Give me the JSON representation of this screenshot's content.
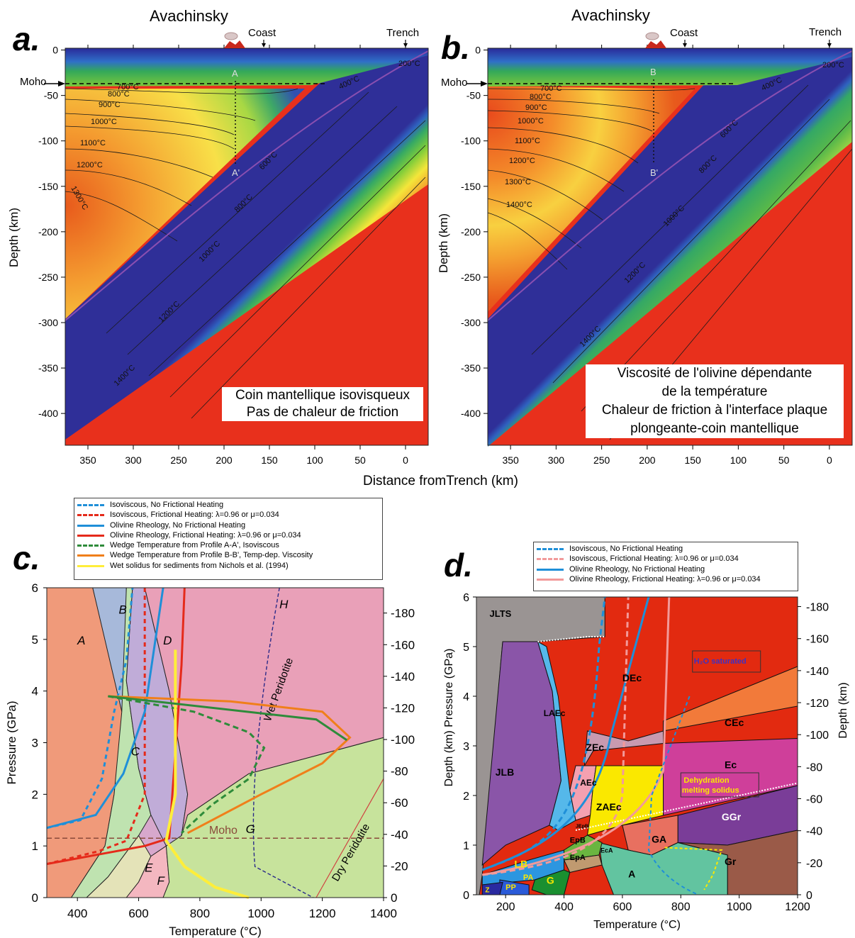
{
  "panels": {
    "a": {
      "letter": "a.",
      "title": "Avachinsky",
      "coast": "Coast",
      "trench": "Trench",
      "moho": "Moho",
      "ylabel": "Depth (km)",
      "box_lines": [
        "Coin mantellique isovisqueux",
        "Pas de chaleur de friction"
      ],
      "profile_top": "A",
      "profile_bottom": "A'"
    },
    "b": {
      "letter": "b.",
      "title": "Avachinsky",
      "coast": "Coast",
      "trench": "Trench",
      "moho": "Moho",
      "ylabel": "Depth (km)",
      "box_lines": [
        "Viscosité de l'olivine dépendante",
        "de la température",
        "Chaleur de friction à l'interface plaque",
        "plongeante-coin mantellique"
      ],
      "profile_top": "B",
      "profile_bottom": "B'"
    },
    "c": {
      "letter": "c."
    },
    "d": {
      "letter": "d."
    }
  },
  "shared_xlabel": "Distance fromTrench (km)",
  "chart_data": [
    {
      "type": "heatmap",
      "title": "Avachinsky",
      "xlabel": "Distance fromTrench (km)",
      "ylabel": "Depth (km)",
      "xticks": [
        350,
        300,
        250,
        200,
        150,
        100,
        50,
        0
      ],
      "yticks": [
        0,
        -50,
        -100,
        -150,
        -200,
        -250,
        -300,
        -350,
        -400
      ],
      "xlim": [
        375,
        -25
      ],
      "ylim": [
        -435,
        2
      ],
      "isotherm_labels": [
        "700°C",
        "800°C",
        "900°C",
        "1000°C",
        "1100°C",
        "1200°C",
        "1300°C",
        "200°C",
        "400°C",
        "600°C",
        "800°C",
        "1000°C",
        "1200°C",
        "1400°C"
      ],
      "annotation": [
        "Coin mantellique isovisqueux",
        "Pas de chaleur de friction"
      ]
    },
    {
      "type": "heatmap",
      "title": "Avachinsky",
      "xlabel": "Distance fromTrench (km)",
      "ylabel": "Depth (km)",
      "xticks": [
        350,
        300,
        250,
        200,
        150,
        100,
        50,
        0
      ],
      "yticks": [
        0,
        -50,
        -100,
        -150,
        -200,
        -250,
        -300,
        -350,
        -400
      ],
      "xlim": [
        375,
        -25
      ],
      "ylim": [
        -435,
        2
      ],
      "isotherm_labels": [
        "700°C",
        "800°C",
        "900°C",
        "1000°C",
        "1100°C",
        "1200°C",
        "1300°C",
        "1400°C",
        "200°C",
        "400°C",
        "600°C",
        "800°C",
        "1000°C",
        "1200°C",
        "1400°C"
      ],
      "annotation": [
        "Viscosité de l'olivine dépendante",
        "de la température",
        "Chaleur de friction à l'interface plaque",
        "plongeante-coin mantellique"
      ]
    },
    {
      "type": "line",
      "xlabel": "Temperature (°C)",
      "ylabel": "Pressure (GPa)",
      "y2label": "",
      "xlim": [
        300,
        1400
      ],
      "ylim": [
        0,
        6
      ],
      "xticks": [
        400,
        600,
        800,
        1000,
        1200,
        1400
      ],
      "yticks": [
        0,
        1,
        2,
        3,
        4,
        5,
        6
      ],
      "y2ticks": [
        0,
        -20,
        -40,
        -60,
        -80,
        -100,
        -120,
        -140,
        -160,
        -180
      ],
      "field_labels": [
        "A",
        "B",
        "C",
        "D",
        "E",
        "F",
        "G",
        "H"
      ],
      "annotations": [
        "Wet Peridotite",
        "Dry Peridotite",
        "Moho"
      ],
      "moho_pressure": 1.15,
      "legend": [
        {
          "label": "Isoviscous, No Frictional Heating",
          "color": "#1f8fd8",
          "style": "dashed"
        },
        {
          "label": "Isoviscous,  Frictional Heating: λ=0.96 or μ=0.034",
          "color": "#e52a1a",
          "style": "dashed"
        },
        {
          "label": "Olivine Rheology, No Frictional Heating",
          "color": "#1f8fd8",
          "style": "solid"
        },
        {
          "label": "Olivine Rheology,  Frictional Heating: λ=0.96 or μ=0.034",
          "color": "#e52a1a",
          "style": "solid"
        },
        {
          "label": "Wedge Temperature from Profile A-A', Isoviscous",
          "color": "#2e8b3a",
          "style": "dashed"
        },
        {
          "label": "Wedge Temperature from Profile B-B', Temp-dep. Viscosity",
          "color": "#f07f1a",
          "style": "solid"
        },
        {
          "label": "Wet solidus for sediments from Nichols et al. (1994)",
          "color": "#ffee3a",
          "style": "solid"
        }
      ],
      "series": [
        {
          "name": "Isoviscous, No Frictional Heating",
          "points": [
            [
              300,
              1.35
            ],
            [
              410,
              1.5
            ],
            [
              480,
              2.3
            ],
            [
              520,
              3.6
            ],
            [
              560,
              4.6
            ],
            [
              580,
              6.0
            ]
          ]
        },
        {
          "name": "Isoviscous,  Frictional Heating: λ=0.96 or μ=0.034",
          "points": [
            [
              300,
              0.65
            ],
            [
              470,
              0.9
            ],
            [
              560,
              1.1
            ],
            [
              620,
              2.0
            ],
            [
              620,
              6.0
            ]
          ]
        },
        {
          "name": "Olivine Rheology, No Frictional Heating",
          "points": [
            [
              300,
              1.35
            ],
            [
              460,
              1.6
            ],
            [
              550,
              2.4
            ],
            [
              620,
              3.6
            ],
            [
              680,
              6.0
            ]
          ]
        },
        {
          "name": "Olivine Rheology,  Frictional Heating: λ=0.96 or μ=0.034",
          "points": [
            [
              300,
              0.65
            ],
            [
              620,
              1.0
            ],
            [
              700,
              1.15
            ],
            [
              740,
              4.5
            ],
            [
              750,
              6.0
            ]
          ]
        },
        {
          "name": "Wedge Temperature from Profile A-A', Isoviscous",
          "points": [
            [
              500,
              3.9
            ],
            [
              780,
              3.6
            ],
            [
              960,
              3.2
            ],
            [
              1010,
              2.9
            ],
            [
              960,
              2.3
            ],
            [
              840,
              1.8
            ],
            [
              740,
              1.25
            ]
          ]
        },
        {
          "name": "Wedge Temperature from Profile B-B', Temp-dep. Viscosity",
          "points": [
            [
              500,
              3.9
            ],
            [
              900,
              3.8
            ],
            [
              1200,
              3.6
            ],
            [
              1290,
              3.1
            ],
            [
              1200,
              2.6
            ],
            [
              1000,
              2.0
            ],
            [
              760,
              1.25
            ]
          ]
        },
        {
          "name": "Wet solidus for sediments from Nichols et al. (1994)",
          "points": [
            [
              720,
              4.8
            ],
            [
              720,
              2.0
            ],
            [
              690,
              1.1
            ],
            [
              750,
              0.6
            ],
            [
              850,
              0.2
            ],
            [
              960,
              0.0
            ]
          ]
        }
      ]
    },
    {
      "type": "line",
      "xlabel": "Temperature (°C)",
      "ylabel": "Depth (km) Pressure (GPa)",
      "y2label": "Depth (km)",
      "xlim": [
        100,
        1200
      ],
      "ylim": [
        0,
        6
      ],
      "xticks": [
        200,
        400,
        600,
        800,
        1000,
        1200
      ],
      "yticks": [
        0,
        1,
        2,
        3,
        4,
        5,
        6
      ],
      "y2ticks": [
        0,
        -20,
        -40,
        -60,
        -80,
        -100,
        -120,
        -140,
        -160,
        -180
      ],
      "field_labels": [
        "JLTS",
        "JLB",
        "LAEc",
        "DEc",
        "ZEc",
        "AEc",
        "ZAEc",
        "CEc",
        "Ec",
        "GGr",
        "GA",
        "Gr",
        "A",
        "G",
        "EpB",
        "EpA",
        "EcA",
        "LB",
        "PA",
        "PP",
        "Z",
        "JEpB"
      ],
      "annotations": [
        "H₂O saturated",
        "Dehydration melting solidus"
      ],
      "legend": [
        {
          "label": "Isoviscous, No Frictional Heating",
          "color": "#1f8fd8",
          "style": "dashed"
        },
        {
          "label": "Isoviscous,  Frictional Heating: λ=0.96 or μ=0.034",
          "color": "#f29a9a",
          "style": "dashed"
        },
        {
          "label": "Olivine Rheology, No Frictional Heating",
          "color": "#1f8fd8",
          "style": "solid"
        },
        {
          "label": "Olivine Rheology,  Frictional Heating: λ=0.96 or μ=0.034",
          "color": "#f29a9a",
          "style": "solid"
        }
      ]
    }
  ]
}
